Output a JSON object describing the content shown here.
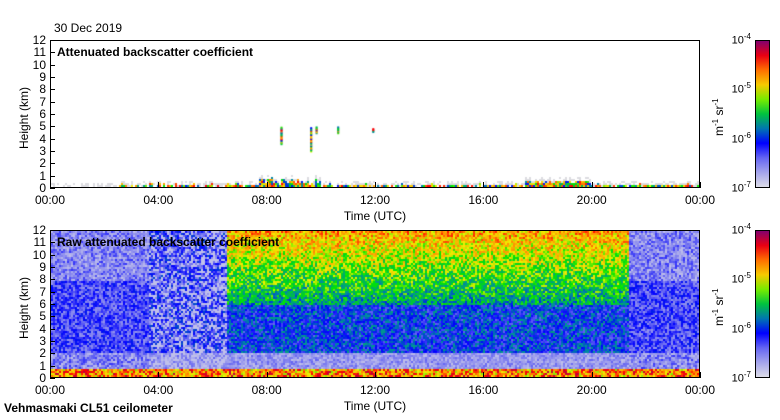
{
  "header": {
    "date": "30 Dec 2019"
  },
  "footer": {
    "instrument": "Vehmasmaki CL51 ceilometer"
  },
  "chart_data": [
    {
      "type": "heatmap",
      "title": "Attenuated backscatter coefficient",
      "xlabel": "Time (UTC)",
      "ylabel": "Height (km)",
      "xticks": [
        "00:00",
        "04:00",
        "08:00",
        "12:00",
        "16:00",
        "20:00",
        "00:00"
      ],
      "yticks": [
        "0",
        "1",
        "2",
        "3",
        "4",
        "5",
        "6",
        "7",
        "8",
        "9",
        "10",
        "11",
        "12"
      ],
      "ylim": [
        0,
        12
      ],
      "xlim_hours": [
        0,
        24
      ],
      "colorbar": {
        "label": "m-1 sr-1",
        "unit_base": "m",
        "unit_exp": "-1",
        "unit_base2": "sr",
        "unit_exp2": "-1",
        "ticks": [
          "10",
          "10",
          "10",
          "10"
        ],
        "tick_exps": [
          "-4",
          "-5",
          "-6",
          "-7"
        ],
        "range": [
          1e-07,
          0.0001
        ],
        "scale": "log"
      }
    },
    {
      "type": "heatmap",
      "title": "Raw attenuated backscatter coefficient",
      "xlabel": "Time (UTC)",
      "ylabel": "Height (km)",
      "xticks": [
        "00:00",
        "04:00",
        "08:00",
        "12:00",
        "16:00",
        "20:00",
        "00:00"
      ],
      "yticks": [
        "0",
        "1",
        "2",
        "3",
        "4",
        "5",
        "6",
        "7",
        "8",
        "9",
        "10",
        "11",
        "12"
      ],
      "ylim": [
        0,
        12
      ],
      "xlim_hours": [
        0,
        24
      ],
      "colorbar": {
        "label": "m-1 sr-1",
        "unit_base": "m",
        "unit_exp": "-1",
        "unit_base2": "sr",
        "unit_exp2": "-1",
        "ticks": [
          "10",
          "10",
          "10",
          "10"
        ],
        "tick_exps": [
          "-4",
          "-5",
          "-6",
          "-7"
        ],
        "range": [
          1e-07,
          0.0001
        ],
        "scale": "log"
      }
    }
  ]
}
